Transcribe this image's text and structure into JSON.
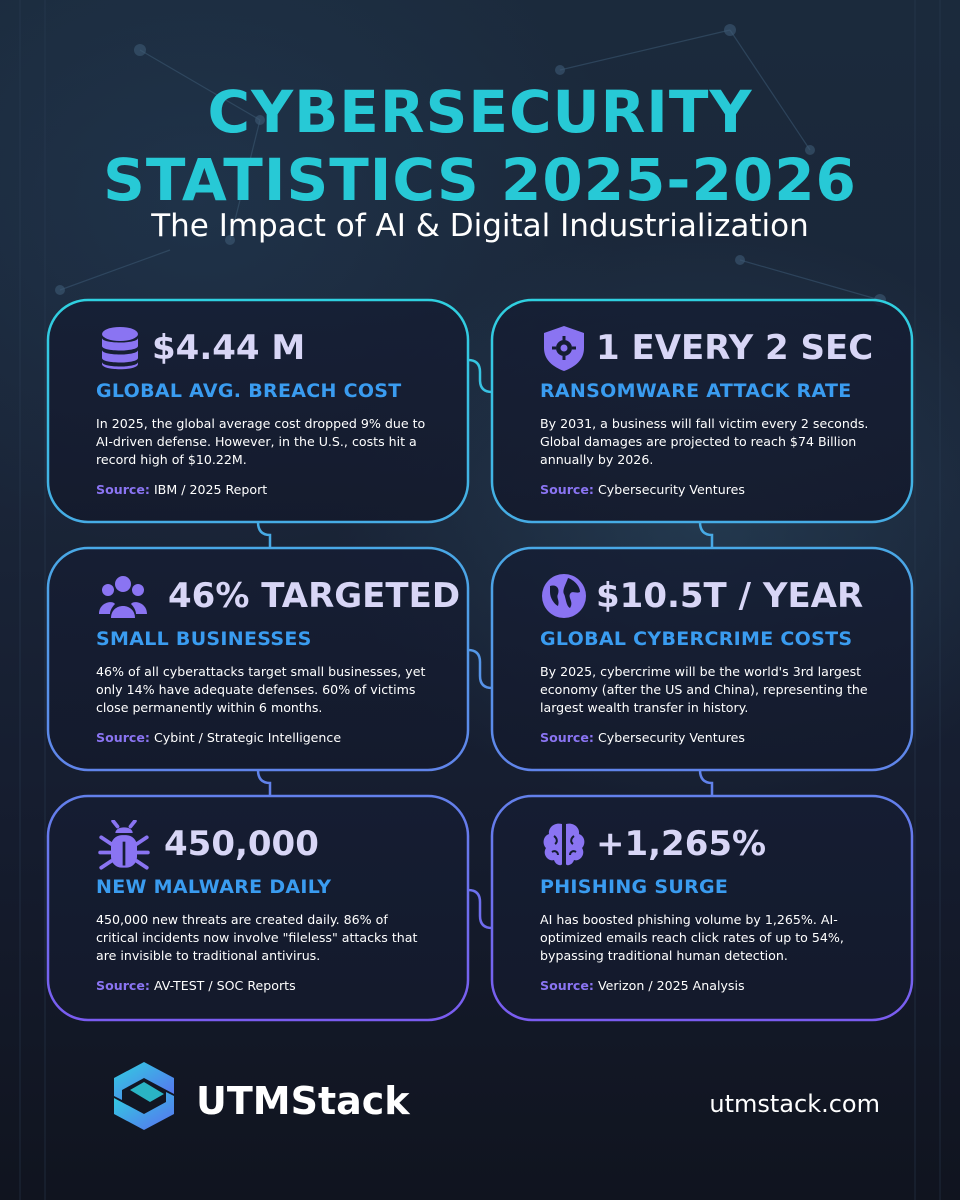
{
  "header": {
    "title_line1": "CYBERSECURITY",
    "title_line2": "STATISTICS 2025-2026",
    "subtitle": "The Impact of AI & Digital Industrialization"
  },
  "cards": [
    {
      "icon": "database-icon",
      "stat": "$4.44 M",
      "label": "GLOBAL AVG. BREACH COST",
      "desc": "In 2025, the global average cost dropped 9% due to AI-driven defense. However, in the U.S., costs hit a record high of $10.22M.",
      "source_label": "Source:",
      "source": "IBM / 2025 Report"
    },
    {
      "icon": "shield-gear-icon",
      "stat": "1 EVERY 2 SEC",
      "label": "RANSOMWARE ATTACK RATE",
      "desc": "By 2031, a business will fall victim every 2 seconds. Global damages are projected to reach $74 Billion annually by 2026.",
      "source_label": "Source:",
      "source": "Cybersecurity Ventures"
    },
    {
      "icon": "users-icon",
      "stat": "46% TARGETED",
      "label": "SMALL BUSINESSES",
      "desc": "46% of all cyberattacks target small businesses, yet only 14% have adequate defenses. 60% of victims close permanently within 6 months.",
      "source_label": "Source:",
      "source": "Cybint / Strategic Intelligence"
    },
    {
      "icon": "globe-icon",
      "stat": "$10.5T / YEAR",
      "label": "GLOBAL CYBERCRIME COSTS",
      "desc": "By 2025, cybercrime will be the world's 3rd largest economy (after the US and China), representing the largest wealth transfer in history.",
      "source_label": "Source:",
      "source": "Cybersecurity Ventures"
    },
    {
      "icon": "bug-icon",
      "stat": "450,000",
      "label": "NEW MALWARE DAILY",
      "desc": "450,000 new threats are created daily. 86% of critical incidents now involve \"fileless\" attacks that are invisible to traditional antivirus.",
      "source_label": "Source:",
      "source": "AV-TEST / SOC Reports"
    },
    {
      "icon": "brain-icon",
      "stat": "+1,265%",
      "label": "PHISHING SURGE",
      "desc": "AI has boosted phishing volume by 1,265%. AI-optimized emails reach click rates of up to 54%, bypassing traditional human detection.",
      "source_label": "Source:",
      "source": "Verizon / 2025 Analysis"
    }
  ],
  "footer": {
    "brand": "UTMStack",
    "url": "utmstack.com",
    "logo_icon": "utmstack-logo-icon"
  },
  "colors": {
    "title": "#27c9d6",
    "label": "#3a9cf0",
    "stat": "#d8d6f6",
    "accent": "#8a74f2",
    "frame_top": "#2fd0e0",
    "frame_bottom": "#7a5cf0"
  }
}
